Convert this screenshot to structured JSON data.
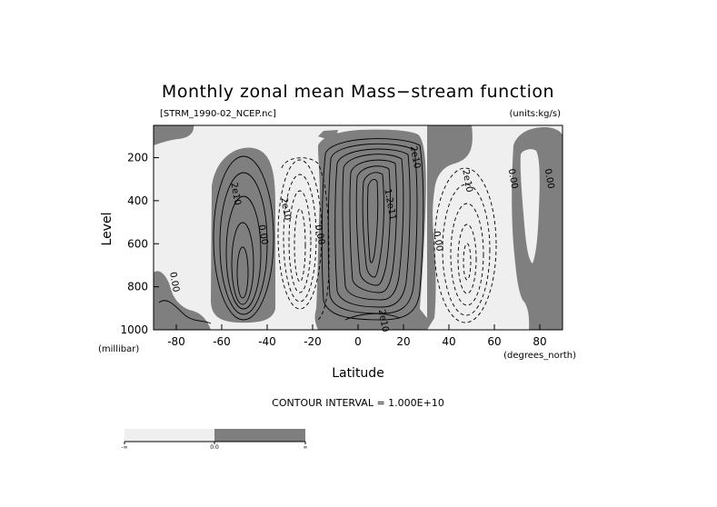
{
  "chart_data": {
    "type": "contour",
    "title": "Monthly zonal mean Mass−stream function",
    "file_label": "[STRM_1990-02_NCEP.nc]",
    "units_label": "(units:kg/s)",
    "xlabel": "Latitude",
    "x_units": "(degrees_north)",
    "ylabel": "Level",
    "y_units": "(millibar)",
    "xlim": [
      -90,
      90
    ],
    "ylim": [
      1000,
      50
    ],
    "y_inverted": true,
    "x_ticks": [
      "-80",
      "-60",
      "-40",
      "-20",
      "0",
      "20",
      "40",
      "60",
      "80"
    ],
    "x_tick_values": [
      -80,
      -60,
      -40,
      -20,
      0,
      20,
      40,
      60,
      80
    ],
    "y_ticks": [
      "200",
      "400",
      "600",
      "800",
      "1000"
    ],
    "y_tick_values": [
      200,
      400,
      600,
      800,
      1000
    ],
    "contour_interval_text": "CONTOUR INTERVAL = 1.000E+10",
    "contour_interval": 10000000000.0,
    "colors": {
      "negative_fill": "#efefef",
      "positive_fill": "#7f7f7f"
    },
    "colorbar_labels": [
      "-∞",
      "0.0",
      "∞"
    ],
    "contour_labels": [
      {
        "text": "2e10",
        "lat": -55,
        "p": 370
      },
      {
        "text": "2e10",
        "lat": -33,
        "p": 440
      },
      {
        "text": "0.00",
        "lat": -43,
        "p": 560
      },
      {
        "text": "0.00",
        "lat": -18,
        "p": 560
      },
      {
        "text": "0.00",
        "lat": -82,
        "p": 780
      },
      {
        "text": "1.2e11",
        "lat": 13,
        "p": 420
      },
      {
        "text": "2e10",
        "lat": 24,
        "p": 200
      },
      {
        "text": "2e10",
        "lat": 10,
        "p": 960
      },
      {
        "text": "0.00",
        "lat": 34,
        "p": 590
      },
      {
        "text": "2e10",
        "lat": 47,
        "p": 310
      },
      {
        "text": "0.00",
        "lat": 67,
        "p": 300
      },
      {
        "text": "0.00",
        "lat": 83,
        "p": 300
      }
    ],
    "cells": [
      {
        "sign": "positive",
        "center_lat": -53,
        "center_p": 680,
        "peak": 40000000000.0
      },
      {
        "sign": "negative",
        "center_lat": -28,
        "center_p": 560,
        "peak": -40000000000.0
      },
      {
        "sign": "positive",
        "center_lat": 10,
        "center_p": 500,
        "peak": 140000000000.0
      },
      {
        "sign": "negative",
        "center_lat": 50,
        "center_p": 560,
        "peak": -50000000000.0
      }
    ]
  }
}
